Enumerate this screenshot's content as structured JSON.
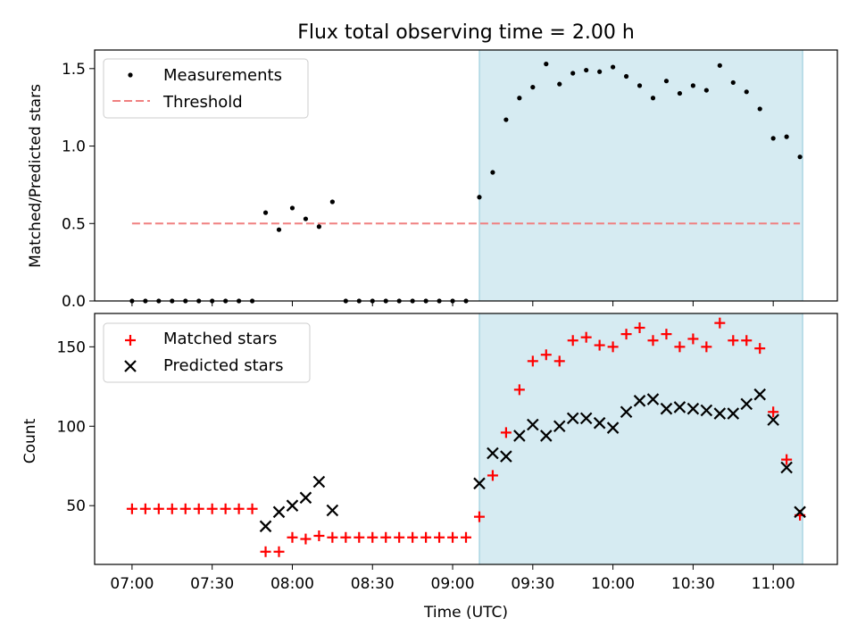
{
  "chart_data": {
    "title": "Flux total observing time = 2.00 h",
    "xlabel": "Time (UTC)",
    "x_tick_labels": [
      "07:00",
      "07:30",
      "08:00",
      "08:30",
      "09:00",
      "09:30",
      "10:00",
      "10:30",
      "11:00"
    ],
    "x_tick_times": [
      "07:00",
      "07:30",
      "08:00",
      "08:30",
      "09:00",
      "09:30",
      "10:00",
      "10:30",
      "11:00"
    ],
    "xlim": [
      "06:46",
      "11:24"
    ],
    "shaded_span": [
      "09:10",
      "11:11"
    ],
    "top_panel": {
      "type": "scatter",
      "ylabel": "Matched/Predicted stars",
      "ylim": [
        0,
        1.62
      ],
      "y_ticks": [
        "0.0",
        "0.5",
        "1.0",
        "1.5"
      ],
      "legend_position": "upper-left",
      "series": [
        {
          "name": "Measurements",
          "color": "#000000",
          "marker": "dot",
          "x": [
            "07:00",
            "07:05",
            "07:10",
            "07:15",
            "07:20",
            "07:25",
            "07:30",
            "07:35",
            "07:40",
            "07:45",
            "07:50",
            "07:55",
            "08:00",
            "08:05",
            "08:10",
            "08:15",
            "08:20",
            "08:25",
            "08:30",
            "08:35",
            "08:40",
            "08:45",
            "08:50",
            "08:55",
            "09:00",
            "09:05",
            "09:10",
            "09:15",
            "09:20",
            "09:25",
            "09:30",
            "09:35",
            "09:40",
            "09:45",
            "09:50",
            "09:55",
            "10:00",
            "10:05",
            "10:10",
            "10:15",
            "10:20",
            "10:25",
            "10:30",
            "10:35",
            "10:40",
            "10:45",
            "10:50",
            "10:55",
            "11:00",
            "11:05",
            "11:10"
          ],
          "y": [
            0,
            0,
            0,
            0,
            0,
            0,
            0,
            0,
            0,
            0,
            0.57,
            0.46,
            0.6,
            0.53,
            0.48,
            0.64,
            0,
            0,
            0,
            0,
            0,
            0,
            0,
            0,
            0,
            0,
            0.67,
            0.83,
            1.17,
            1.31,
            1.38,
            1.53,
            1.4,
            1.47,
            1.49,
            1.48,
            1.51,
            1.45,
            1.39,
            1.31,
            1.42,
            1.34,
            1.39,
            1.36,
            1.52,
            1.41,
            1.35,
            1.24,
            1.05,
            1.06,
            0.93
          ]
        },
        {
          "name": "Threshold",
          "color": "#f08080",
          "style": "dashed",
          "x": [
            "07:00",
            "11:10"
          ],
          "y": [
            0.5,
            0.5
          ]
        }
      ]
    },
    "bottom_panel": {
      "type": "scatter",
      "ylabel": "Count",
      "ylim": [
        13,
        171
      ],
      "y_ticks": [
        "50",
        "100",
        "150"
      ],
      "legend_position": "upper-left",
      "series": [
        {
          "name": "Matched stars",
          "color": "#ff0000",
          "marker": "plus",
          "x": [
            "07:00",
            "07:05",
            "07:10",
            "07:15",
            "07:20",
            "07:25",
            "07:30",
            "07:35",
            "07:40",
            "07:45",
            "07:50",
            "07:55",
            "08:00",
            "08:05",
            "08:10",
            "08:15",
            "08:20",
            "08:25",
            "08:30",
            "08:35",
            "08:40",
            "08:45",
            "08:50",
            "08:55",
            "09:00",
            "09:05",
            "09:10",
            "09:15",
            "09:20",
            "09:25",
            "09:30",
            "09:35",
            "09:40",
            "09:45",
            "09:50",
            "09:55",
            "10:00",
            "10:05",
            "10:10",
            "10:15",
            "10:20",
            "10:25",
            "10:30",
            "10:35",
            "10:40",
            "10:45",
            "10:50",
            "10:55",
            "11:00",
            "11:05",
            "11:10"
          ],
          "y": [
            48,
            48,
            48,
            48,
            48,
            48,
            48,
            48,
            48,
            48,
            21,
            21,
            30,
            29,
            31,
            30,
            30,
            30,
            30,
            30,
            30,
            30,
            30,
            30,
            30,
            30,
            43,
            69,
            96,
            123,
            141,
            145,
            141,
            154,
            156,
            151,
            150,
            158,
            162,
            154,
            158,
            150,
            155,
            150,
            165,
            154,
            154,
            149,
            109,
            79,
            44
          ]
        },
        {
          "name": "Predicted stars",
          "color": "#000000",
          "marker": "x",
          "x": [
            "07:50",
            "07:55",
            "08:00",
            "08:05",
            "08:10",
            "08:15",
            "09:10",
            "09:15",
            "09:20",
            "09:25",
            "09:30",
            "09:35",
            "09:40",
            "09:45",
            "09:50",
            "09:55",
            "10:00",
            "10:05",
            "10:10",
            "10:15",
            "10:20",
            "10:25",
            "10:30",
            "10:35",
            "10:40",
            "10:45",
            "10:50",
            "10:55",
            "11:00",
            "11:05",
            "11:10"
          ],
          "y": [
            37,
            46,
            50,
            55,
            65,
            47,
            64,
            83,
            81,
            94,
            101,
            94,
            100,
            105,
            105,
            102,
            99,
            109,
            116,
            117,
            111,
            112,
            111,
            110,
            108,
            108,
            114,
            120,
            104,
            74,
            46
          ]
        }
      ]
    }
  }
}
